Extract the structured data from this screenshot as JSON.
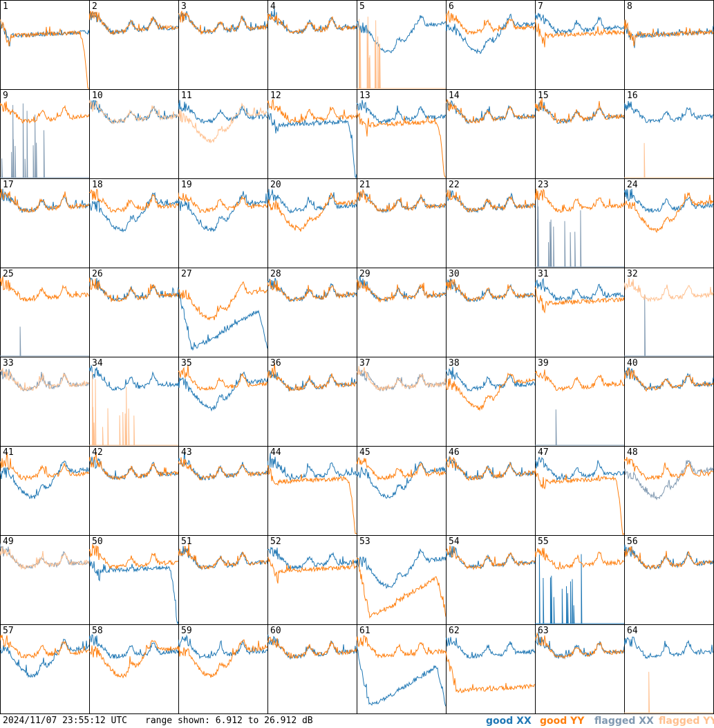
{
  "footer": {
    "timestamp": "2024/11/07 23:55:12 UTC",
    "range": "range shown: 6.912 to 26.912 dB"
  },
  "legend": [
    {
      "label": "good XX",
      "color": "#1f77b4"
    },
    {
      "label": "good YY",
      "color": "#ff7f0e"
    },
    {
      "label": "flagged XX",
      "color": "#7f98b0"
    },
    {
      "label": "flagged YY",
      "color": "#ffc08f"
    }
  ],
  "chart_data": {
    "type": "line",
    "grid": [
      8,
      8
    ],
    "ylim": [
      6.912,
      26.912
    ],
    "yunit": "dB",
    "panels": [
      {
        "label": "1",
        "xx": "good",
        "yy": "good",
        "xx_shape": "flat",
        "yy_shape": "dropend"
      },
      {
        "label": "2",
        "xx": "good",
        "yy": "good",
        "xx_shape": "normal",
        "yy_shape": "normal"
      },
      {
        "label": "3",
        "xx": "good",
        "yy": "good",
        "xx_shape": "normal",
        "yy_shape": "normal"
      },
      {
        "label": "4",
        "xx": "good",
        "yy": "good",
        "xx_shape": "normal",
        "yy_shape": "normal"
      },
      {
        "label": "5",
        "xx": "good",
        "yy": "flagged",
        "xx_shape": "dip",
        "yy_shape": "spikes_low"
      },
      {
        "label": "6",
        "xx": "good",
        "yy": "good",
        "xx_shape": "dip",
        "yy_shape": "normal"
      },
      {
        "label": "7",
        "xx": "good",
        "yy": "good",
        "xx_shape": "normal",
        "yy_shape": "flat"
      },
      {
        "label": "8",
        "xx": "good",
        "yy": "good",
        "xx_shape": "flat",
        "yy_shape": "flat"
      },
      {
        "label": "9",
        "xx": "flagged",
        "yy": "good",
        "xx_shape": "spikes_low",
        "yy_shape": "normal"
      },
      {
        "label": "10",
        "xx": "good",
        "yy": "flagged",
        "xx_shape": "normal",
        "yy_shape": "normal"
      },
      {
        "label": "11",
        "xx": "good",
        "yy": "flagged",
        "xx_shape": "normal",
        "yy_shape": "dip"
      },
      {
        "label": "12",
        "xx": "good",
        "yy": "good",
        "xx_shape": "dropend",
        "yy_shape": "normal"
      },
      {
        "label": "13",
        "xx": "good",
        "yy": "good",
        "xx_shape": "normal",
        "yy_shape": "dropend"
      },
      {
        "label": "14",
        "xx": "good",
        "yy": "good",
        "xx_shape": "normal",
        "yy_shape": "normal"
      },
      {
        "label": "15",
        "xx": "good",
        "yy": "good",
        "xx_shape": "normal",
        "yy_shape": "normal"
      },
      {
        "label": "16",
        "xx": "good",
        "yy": "flagged",
        "xx_shape": "normal",
        "yy_shape": "spike_single"
      },
      {
        "label": "17",
        "xx": "good",
        "yy": "good",
        "xx_shape": "normal",
        "yy_shape": "normal"
      },
      {
        "label": "18",
        "xx": "good",
        "yy": "good",
        "xx_shape": "dip",
        "yy_shape": "normal"
      },
      {
        "label": "19",
        "xx": "good",
        "yy": "good",
        "xx_shape": "dip",
        "yy_shape": "normal"
      },
      {
        "label": "20",
        "xx": "good",
        "yy": "good",
        "xx_shape": "normal",
        "yy_shape": "dip"
      },
      {
        "label": "21",
        "xx": "good",
        "yy": "good",
        "xx_shape": "normal",
        "yy_shape": "normal"
      },
      {
        "label": "22",
        "xx": "good",
        "yy": "good",
        "xx_shape": "normal",
        "yy_shape": "normal"
      },
      {
        "label": "23",
        "xx": "flagged",
        "yy": "good",
        "xx_shape": "spikes_low",
        "yy_shape": "normal"
      },
      {
        "label": "24",
        "xx": "good",
        "yy": "good",
        "xx_shape": "normal",
        "yy_shape": "dip"
      },
      {
        "label": "25",
        "xx": "flagged",
        "yy": "good",
        "xx_shape": "spike_single",
        "yy_shape": "normal"
      },
      {
        "label": "26",
        "xx": "good",
        "yy": "good",
        "xx_shape": "normal",
        "yy_shape": "normal"
      },
      {
        "label": "27",
        "xx": "good",
        "yy": "good",
        "xx_shape": "bigdip",
        "yy_shape": "dip"
      },
      {
        "label": "28",
        "xx": "good",
        "yy": "good",
        "xx_shape": "normal",
        "yy_shape": "normal"
      },
      {
        "label": "29",
        "xx": "good",
        "yy": "good",
        "xx_shape": "normal",
        "yy_shape": "normal"
      },
      {
        "label": "30",
        "xx": "good",
        "yy": "good",
        "xx_shape": "normal",
        "yy_shape": "normal"
      },
      {
        "label": "31",
        "xx": "good",
        "yy": "good",
        "xx_shape": "normal",
        "yy_shape": "flat"
      },
      {
        "label": "32",
        "xx": "flagged",
        "yy": "flagged",
        "xx_shape": "spike_single",
        "yy_shape": "normal"
      },
      {
        "label": "33",
        "xx": "flagged",
        "yy": "flagged",
        "xx_shape": "normal",
        "yy_shape": "normal"
      },
      {
        "label": "34",
        "xx": "good",
        "yy": "flagged",
        "xx_shape": "normal",
        "yy_shape": "spikes_low"
      },
      {
        "label": "35",
        "xx": "good",
        "yy": "good",
        "xx_shape": "dip",
        "yy_shape": "normal"
      },
      {
        "label": "36",
        "xx": "good",
        "yy": "good",
        "xx_shape": "normal",
        "yy_shape": "normal"
      },
      {
        "label": "37",
        "xx": "flagged",
        "yy": "flagged",
        "xx_shape": "normal",
        "yy_shape": "normal"
      },
      {
        "label": "38",
        "xx": "good",
        "yy": "good",
        "xx_shape": "normal",
        "yy_shape": "dip"
      },
      {
        "label": "39",
        "xx": "flagged",
        "yy": "good",
        "xx_shape": "spike_single",
        "yy_shape": "normal"
      },
      {
        "label": "40",
        "xx": "good",
        "yy": "good",
        "xx_shape": "normal",
        "yy_shape": "normal"
      },
      {
        "label": "41",
        "xx": "good",
        "yy": "good",
        "xx_shape": "dip",
        "yy_shape": "normal"
      },
      {
        "label": "42",
        "xx": "good",
        "yy": "good",
        "xx_shape": "normal",
        "yy_shape": "normal"
      },
      {
        "label": "43",
        "xx": "good",
        "yy": "good",
        "xx_shape": "normal",
        "yy_shape": "normal"
      },
      {
        "label": "44",
        "xx": "good",
        "yy": "good",
        "xx_shape": "normal",
        "yy_shape": "dropend"
      },
      {
        "label": "45",
        "xx": "good",
        "yy": "good",
        "xx_shape": "dip",
        "yy_shape": "normal"
      },
      {
        "label": "46",
        "xx": "good",
        "yy": "good",
        "xx_shape": "normal",
        "yy_shape": "normal"
      },
      {
        "label": "47",
        "xx": "good",
        "yy": "good",
        "xx_shape": "normal",
        "yy_shape": "dropend"
      },
      {
        "label": "48",
        "xx": "flagged",
        "yy": "good",
        "xx_shape": "dip",
        "yy_shape": "normal"
      },
      {
        "label": "49",
        "xx": "flagged",
        "yy": "flagged",
        "xx_shape": "normal",
        "yy_shape": "normal"
      },
      {
        "label": "50",
        "xx": "good",
        "yy": "good",
        "xx_shape": "dropend",
        "yy_shape": "normal"
      },
      {
        "label": "51",
        "xx": "good",
        "yy": "good",
        "xx_shape": "normal",
        "yy_shape": "normal"
      },
      {
        "label": "52",
        "xx": "good",
        "yy": "good",
        "xx_shape": "normal",
        "yy_shape": "flat"
      },
      {
        "label": "53",
        "xx": "good",
        "yy": "good",
        "xx_shape": "dip",
        "yy_shape": "bigdip"
      },
      {
        "label": "54",
        "xx": "good",
        "yy": "good",
        "xx_shape": "normal",
        "yy_shape": "normal"
      },
      {
        "label": "55",
        "xx": "good",
        "yy": "good",
        "xx_shape": "spikes_low",
        "yy_shape": "normal"
      },
      {
        "label": "56",
        "xx": "good",
        "yy": "good",
        "xx_shape": "normal",
        "yy_shape": "normal"
      },
      {
        "label": "57",
        "xx": "good",
        "yy": "good",
        "xx_shape": "dip",
        "yy_shape": "normal"
      },
      {
        "label": "58",
        "xx": "good",
        "yy": "good",
        "xx_shape": "normal",
        "yy_shape": "dip"
      },
      {
        "label": "59",
        "xx": "good",
        "yy": "good",
        "xx_shape": "normal",
        "yy_shape": "dip"
      },
      {
        "label": "60",
        "xx": "good",
        "yy": "good",
        "xx_shape": "normal",
        "yy_shape": "normal"
      },
      {
        "label": "61",
        "xx": "good",
        "yy": "good",
        "xx_shape": "bigdip",
        "yy_shape": "normal"
      },
      {
        "label": "62",
        "xx": "good",
        "yy": "good",
        "xx_shape": "normal",
        "yy_shape": "lowflat"
      },
      {
        "label": "63",
        "xx": "good",
        "yy": "good",
        "xx_shape": "normal",
        "yy_shape": "normal"
      },
      {
        "label": "64",
        "xx": "good",
        "yy": "flagged",
        "xx_shape": "normal",
        "yy_shape": "spike_single"
      }
    ]
  }
}
